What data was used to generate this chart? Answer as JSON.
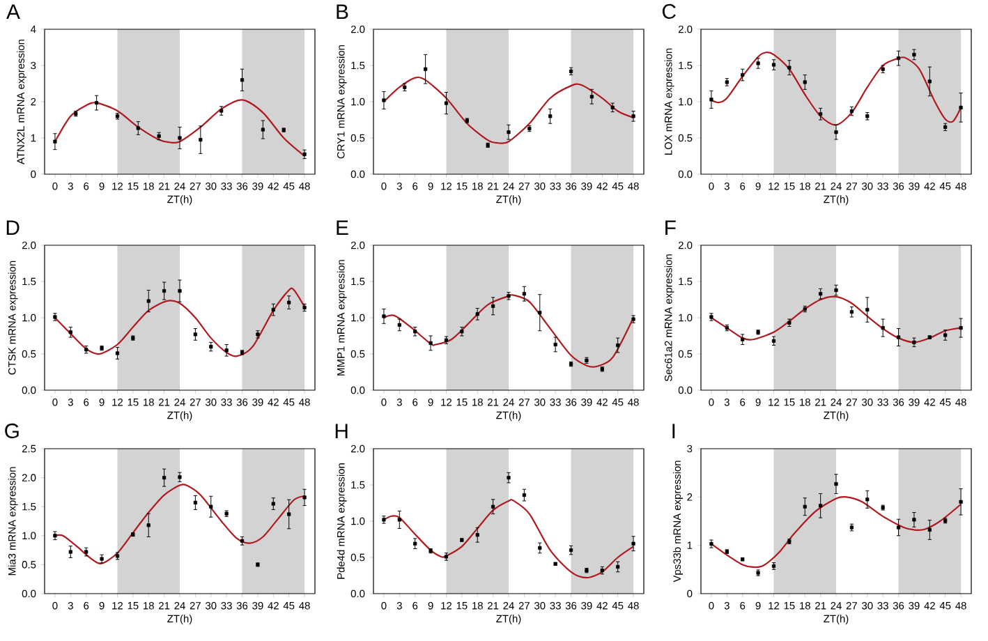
{
  "chart_data": [
    {
      "type": "scatter",
      "title": "A",
      "xlabel": "ZT(h)",
      "ylabel": "ATNX2L mRNA expression",
      "marker": "square",
      "xlim": [
        -2,
        50
      ],
      "ylim": [
        0,
        4
      ],
      "xticks": [
        0,
        3,
        6,
        9,
        12,
        15,
        18,
        21,
        24,
        27,
        30,
        33,
        36,
        39,
        42,
        45,
        48
      ],
      "yticks": [
        0,
        1,
        2,
        3,
        4
      ],
      "bands": [
        {
          "axis": "x",
          "from": 12,
          "to": 24,
          "color": "#d3d3d3"
        },
        {
          "axis": "x",
          "from": 36,
          "to": 48,
          "color": "#d3d3d3"
        }
      ],
      "series": [
        {
          "type": "line",
          "marker": "none",
          "color": "#b0191e",
          "x": [
            0,
            3,
            6,
            8,
            12,
            16,
            20,
            22,
            24,
            28,
            32,
            36,
            40,
            44,
            48
          ],
          "values": [
            0.9,
            1.6,
            1.9,
            1.97,
            1.75,
            1.3,
            0.95,
            0.88,
            0.9,
            1.3,
            1.8,
            2.05,
            1.7,
            1.0,
            0.5
          ]
        },
        {
          "type": "scatter",
          "color": "#000000",
          "x": [
            0,
            4,
            8,
            12,
            16,
            20,
            24,
            28,
            32,
            36,
            40,
            44,
            48
          ],
          "values": [
            0.9,
            1.67,
            1.97,
            1.6,
            1.27,
            1.05,
            1.0,
            0.95,
            1.75,
            2.6,
            1.23,
            1.22,
            0.55
          ],
          "errors": [
            0.22,
            0.07,
            0.2,
            0.08,
            0.18,
            0.1,
            0.3,
            0.38,
            0.12,
            0.3,
            0.25,
            0.05,
            0.12
          ]
        }
      ]
    },
    {
      "type": "scatter",
      "title": "B",
      "xlabel": "ZT(h)",
      "ylabel": "CRY1 mRNA expression",
      "marker": "square",
      "xlim": [
        -2,
        50
      ],
      "ylim": [
        0,
        2
      ],
      "xticks": [
        0,
        3,
        6,
        9,
        12,
        15,
        18,
        21,
        24,
        27,
        30,
        33,
        36,
        39,
        42,
        45,
        48
      ],
      "yticks": [
        {
          "value": 0,
          "label": "0.0"
        },
        {
          "value": 0.5,
          "label": "0.5"
        },
        {
          "value": 1,
          "label": "1.0"
        },
        {
          "value": 1.5,
          "label": "1.5"
        },
        {
          "value": 2,
          "label": "2.0"
        }
      ],
      "bands": [
        {
          "axis": "x",
          "from": 12,
          "to": 24,
          "color": "#d3d3d3"
        },
        {
          "axis": "x",
          "from": 36,
          "to": 48,
          "color": "#d3d3d3"
        }
      ],
      "series": [
        {
          "type": "line",
          "marker": "none",
          "color": "#b0191e",
          "x": [
            0,
            3,
            6,
            8,
            12,
            16,
            20,
            22,
            24,
            28,
            32,
            36,
            38,
            42,
            45,
            48
          ],
          "values": [
            1.0,
            1.2,
            1.33,
            1.3,
            1.05,
            0.7,
            0.47,
            0.43,
            0.45,
            0.7,
            1.05,
            1.22,
            1.23,
            1.05,
            0.87,
            0.78
          ]
        },
        {
          "type": "scatter",
          "color": "#000000",
          "x": [
            0,
            4,
            8,
            12,
            16,
            20,
            24,
            28,
            32,
            36,
            40,
            44,
            48
          ],
          "values": [
            1.02,
            1.2,
            1.45,
            0.98,
            0.74,
            0.4,
            0.58,
            0.63,
            0.8,
            1.42,
            1.07,
            0.92,
            0.8
          ],
          "errors": [
            0.12,
            0.05,
            0.2,
            0.15,
            0.03,
            0.03,
            0.1,
            0.04,
            0.1,
            0.05,
            0.1,
            0.06,
            0.07
          ]
        }
      ]
    },
    {
      "type": "scatter",
      "title": "C",
      "xlabel": "ZT(h)",
      "ylabel": "LOX mRNA expression",
      "marker": "square",
      "xlim": [
        -2,
        50
      ],
      "ylim": [
        0,
        2
      ],
      "xticks": [
        0,
        3,
        6,
        9,
        12,
        15,
        18,
        21,
        24,
        27,
        30,
        33,
        36,
        39,
        42,
        45,
        48
      ],
      "yticks": [
        {
          "value": 0,
          "label": "0.0"
        },
        {
          "value": 0.5,
          "label": "0.5"
        },
        {
          "value": 1,
          "label": "1.0"
        },
        {
          "value": 1.5,
          "label": "1.5"
        },
        {
          "value": 2,
          "label": "2.0"
        }
      ],
      "bands": [
        {
          "axis": "x",
          "from": 12,
          "to": 24,
          "color": "#d3d3d3"
        },
        {
          "axis": "x",
          "from": 36,
          "to": 48,
          "color": "#d3d3d3"
        }
      ],
      "series": [
        {
          "type": "line",
          "marker": "none",
          "color": "#b0191e",
          "x": [
            0,
            1.5,
            3,
            6,
            9,
            10.5,
            12,
            15,
            18,
            21,
            24,
            27,
            30,
            33,
            36,
            37.5,
            40,
            43,
            45,
            46.5,
            48
          ],
          "values": [
            1.02,
            0.99,
            1.05,
            1.35,
            1.62,
            1.68,
            1.65,
            1.45,
            1.1,
            0.8,
            0.68,
            0.85,
            1.2,
            1.5,
            1.6,
            1.6,
            1.45,
            1.0,
            0.76,
            0.73,
            0.92
          ]
        },
        {
          "type": "scatter",
          "color": "#000000",
          "x": [
            0,
            3,
            6,
            9,
            12,
            15,
            18,
            21,
            24,
            27,
            30,
            33,
            36,
            39,
            42,
            45,
            48
          ],
          "values": [
            1.03,
            1.27,
            1.37,
            1.53,
            1.51,
            1.47,
            1.27,
            0.83,
            0.58,
            0.87,
            0.8,
            1.45,
            1.6,
            1.65,
            1.28,
            0.65,
            0.92
          ],
          "errors": [
            0.12,
            0.05,
            0.08,
            0.07,
            0.07,
            0.1,
            0.1,
            0.08,
            0.1,
            0.06,
            0.05,
            0.05,
            0.1,
            0.07,
            0.2,
            0.05,
            0.2
          ]
        }
      ]
    },
    {
      "type": "scatter",
      "title": "D",
      "xlabel": "ZT(h)",
      "ylabel": "CTSK mRNA expression",
      "marker": "square",
      "xlim": [
        -2,
        50
      ],
      "ylim": [
        0,
        2
      ],
      "xticks": [
        0,
        3,
        6,
        9,
        12,
        15,
        18,
        21,
        24,
        27,
        30,
        33,
        36,
        39,
        42,
        45,
        48
      ],
      "yticks": [
        {
          "value": 0,
          "label": "0.0"
        },
        {
          "value": 0.5,
          "label": "0.5"
        },
        {
          "value": 1,
          "label": "1.0"
        },
        {
          "value": 1.5,
          "label": "1.5"
        },
        {
          "value": 2,
          "label": "2.0"
        }
      ],
      "bands": [
        {
          "axis": "x",
          "from": 12,
          "to": 24,
          "color": "#d3d3d3"
        },
        {
          "axis": "x",
          "from": 36,
          "to": 48,
          "color": "#d3d3d3"
        }
      ],
      "series": [
        {
          "type": "line",
          "marker": "none",
          "color": "#b0191e",
          "x": [
            0,
            3,
            6,
            8.5,
            12,
            15,
            18,
            21.5,
            24,
            27,
            30,
            33,
            35,
            38,
            42,
            45,
            46,
            48
          ],
          "values": [
            1.0,
            0.78,
            0.57,
            0.5,
            0.63,
            0.87,
            1.1,
            1.23,
            1.2,
            1.0,
            0.72,
            0.52,
            0.47,
            0.6,
            1.1,
            1.38,
            1.38,
            1.15
          ]
        },
        {
          "type": "scatter",
          "color": "#000000",
          "x": [
            0,
            3,
            6,
            9,
            12,
            15,
            18,
            21,
            24,
            27,
            30,
            33,
            36,
            39,
            42,
            45,
            48
          ],
          "values": [
            1.01,
            0.8,
            0.56,
            0.58,
            0.51,
            0.72,
            1.23,
            1.37,
            1.37,
            0.77,
            0.6,
            0.55,
            0.52,
            0.77,
            1.11,
            1.21,
            1.14
          ],
          "errors": [
            0.05,
            0.07,
            0.05,
            0.03,
            0.08,
            0.03,
            0.15,
            0.12,
            0.15,
            0.08,
            0.06,
            0.08,
            0.03,
            0.05,
            0.08,
            0.09,
            0.05
          ]
        }
      ]
    },
    {
      "type": "scatter",
      "title": "E",
      "xlabel": "ZT(h)",
      "ylabel": "MMP1 mRNA expression",
      "marker": "square",
      "xlim": [
        -2,
        50
      ],
      "ylim": [
        0,
        2
      ],
      "xticks": [
        0,
        3,
        6,
        9,
        12,
        15,
        18,
        21,
        24,
        27,
        30,
        33,
        36,
        39,
        42,
        45,
        48
      ],
      "yticks": [
        {
          "value": 0,
          "label": "0.0"
        },
        {
          "value": 0.5,
          "label": "0.5"
        },
        {
          "value": 1,
          "label": "1.0"
        },
        {
          "value": 1.5,
          "label": "1.5"
        },
        {
          "value": 2,
          "label": "2.0"
        }
      ],
      "bands": [
        {
          "axis": "x",
          "from": 12,
          "to": 24,
          "color": "#d3d3d3"
        },
        {
          "axis": "x",
          "from": 36,
          "to": 48,
          "color": "#d3d3d3"
        }
      ],
      "series": [
        {
          "type": "line",
          "marker": "none",
          "color": "#b0191e",
          "x": [
            0,
            2,
            5,
            9,
            10,
            13,
            16,
            20,
            24,
            25,
            28,
            32,
            36,
            39,
            41,
            44,
            48
          ],
          "values": [
            1.0,
            1.03,
            0.88,
            0.64,
            0.63,
            0.7,
            0.9,
            1.18,
            1.3,
            1.31,
            1.22,
            0.85,
            0.48,
            0.34,
            0.33,
            0.45,
            1.0
          ]
        },
        {
          "type": "scatter",
          "color": "#000000",
          "x": [
            0,
            3,
            6,
            9,
            12,
            15,
            18,
            21,
            24,
            27,
            30,
            33,
            36,
            39,
            42,
            45,
            48
          ],
          "values": [
            1.02,
            0.9,
            0.81,
            0.65,
            0.69,
            0.81,
            1.05,
            1.16,
            1.3,
            1.33,
            1.07,
            0.63,
            0.36,
            0.41,
            0.29,
            0.62,
            0.98
          ],
          "errors": [
            0.1,
            0.08,
            0.06,
            0.1,
            0.05,
            0.06,
            0.08,
            0.12,
            0.05,
            0.1,
            0.25,
            0.1,
            0.03,
            0.04,
            0.03,
            0.1,
            0.05
          ]
        }
      ]
    },
    {
      "type": "scatter",
      "title": "F",
      "xlabel": "ZT(h)",
      "ylabel": "Sec61a2 mRNA expression",
      "marker": "square",
      "xlim": [
        -2,
        50
      ],
      "ylim": [
        0,
        2
      ],
      "xticks": [
        0,
        3,
        6,
        9,
        12,
        15,
        18,
        21,
        24,
        27,
        30,
        33,
        36,
        39,
        42,
        45,
        48
      ],
      "yticks": [
        {
          "value": 0,
          "label": "0.0"
        },
        {
          "value": 0.5,
          "label": "0.5"
        },
        {
          "value": 1,
          "label": "1.0"
        },
        {
          "value": 1.5,
          "label": "1.5"
        },
        {
          "value": 2,
          "label": "2.0"
        }
      ],
      "bands": [
        {
          "axis": "x",
          "from": 12,
          "to": 24,
          "color": "#d3d3d3"
        },
        {
          "axis": "x",
          "from": 36,
          "to": 48,
          "color": "#d3d3d3"
        }
      ],
      "series": [
        {
          "type": "line",
          "marker": "none",
          "color": "#b0191e",
          "x": [
            0,
            3,
            6,
            8,
            12,
            15,
            18,
            21,
            24,
            27,
            30,
            33,
            36,
            39,
            42,
            45,
            48
          ],
          "values": [
            1.0,
            0.86,
            0.72,
            0.7,
            0.8,
            0.95,
            1.12,
            1.25,
            1.29,
            1.2,
            1.02,
            0.85,
            0.72,
            0.66,
            0.72,
            0.82,
            0.86
          ]
        },
        {
          "type": "scatter",
          "color": "#000000",
          "x": [
            0,
            3,
            6,
            9,
            12,
            15,
            18,
            21,
            24,
            27,
            30,
            33,
            36,
            39,
            42,
            45,
            48
          ],
          "values": [
            1.01,
            0.86,
            0.7,
            0.8,
            0.68,
            0.93,
            1.12,
            1.33,
            1.38,
            1.08,
            1.11,
            0.86,
            0.73,
            0.66,
            0.73,
            0.76,
            0.86
          ],
          "errors": [
            0.05,
            0.04,
            0.07,
            0.03,
            0.06,
            0.05,
            0.04,
            0.07,
            0.07,
            0.07,
            0.17,
            0.12,
            0.12,
            0.06,
            0.02,
            0.07,
            0.13
          ]
        }
      ]
    },
    {
      "type": "scatter",
      "title": "G",
      "xlabel": "ZT(h)",
      "ylabel": "Mia3 mRNA expression",
      "marker": "square",
      "xlim": [
        -2,
        50
      ],
      "ylim": [
        0,
        2.5
      ],
      "xticks": [
        0,
        3,
        6,
        9,
        12,
        15,
        18,
        21,
        24,
        27,
        30,
        33,
        36,
        39,
        42,
        45,
        48
      ],
      "yticks": [
        {
          "value": 0,
          "label": "0.0"
        },
        {
          "value": 0.5,
          "label": "0.5"
        },
        {
          "value": 1,
          "label": "1.0"
        },
        {
          "value": 1.5,
          "label": "1.5"
        },
        {
          "value": 2,
          "label": "2.0"
        },
        {
          "value": 2.5,
          "label": "2.5"
        }
      ],
      "bands": [
        {
          "axis": "x",
          "from": 12,
          "to": 24,
          "color": "#d3d3d3"
        },
        {
          "axis": "x",
          "from": 36,
          "to": 48,
          "color": "#d3d3d3"
        }
      ],
      "series": [
        {
          "type": "line",
          "marker": "none",
          "color": "#b0191e",
          "x": [
            0,
            1.5,
            4,
            7,
            9,
            12,
            15,
            18,
            21,
            24,
            25.5,
            28,
            32,
            35,
            37.5,
            40,
            43,
            46,
            48
          ],
          "values": [
            1.0,
            1.0,
            0.83,
            0.6,
            0.52,
            0.7,
            1.05,
            1.4,
            1.7,
            1.87,
            1.86,
            1.7,
            1.25,
            0.95,
            0.87,
            0.98,
            1.3,
            1.62,
            1.68
          ]
        },
        {
          "type": "scatter",
          "color": "#000000",
          "x": [
            0,
            3,
            6,
            9,
            12,
            15,
            18,
            21,
            24,
            27,
            30,
            33,
            36,
            39,
            42,
            45,
            48
          ],
          "values": [
            1.0,
            0.72,
            0.72,
            0.6,
            0.65,
            1.02,
            1.18,
            2.0,
            2.01,
            1.57,
            1.5,
            1.38,
            0.91,
            0.5,
            1.55,
            1.37,
            1.66
          ],
          "errors": [
            0.07,
            0.1,
            0.07,
            0.07,
            0.06,
            0.03,
            0.2,
            0.15,
            0.08,
            0.12,
            0.18,
            0.05,
            0.07,
            0.03,
            0.1,
            0.25,
            0.14
          ]
        }
      ]
    },
    {
      "type": "scatter",
      "title": "H",
      "xlabel": "ZT(h)",
      "ylabel": "Pde4d mRNA expression",
      "marker": "square",
      "xlim": [
        -2,
        50
      ],
      "ylim": [
        0,
        2
      ],
      "xticks": [
        0,
        3,
        6,
        9,
        12,
        15,
        18,
        21,
        24,
        27,
        30,
        33,
        36,
        39,
        42,
        45,
        48
      ],
      "yticks": [
        {
          "value": 0,
          "label": "0.0"
        },
        {
          "value": 0.5,
          "label": "0.5"
        },
        {
          "value": 1,
          "label": "1.0"
        },
        {
          "value": 1.5,
          "label": "1.5"
        },
        {
          "value": 2,
          "label": "2.0"
        }
      ],
      "bands": [
        {
          "axis": "x",
          "from": 12,
          "to": 24,
          "color": "#d3d3d3"
        },
        {
          "axis": "x",
          "from": 36,
          "to": 48,
          "color": "#d3d3d3"
        }
      ],
      "series": [
        {
          "type": "line",
          "marker": "none",
          "color": "#b0191e",
          "x": [
            0,
            1.5,
            3,
            6,
            9,
            11,
            12,
            15,
            18,
            21,
            24,
            25,
            28,
            32,
            36,
            39,
            42,
            45,
            48
          ],
          "values": [
            1.02,
            1.07,
            1.05,
            0.82,
            0.6,
            0.51,
            0.52,
            0.65,
            0.9,
            1.15,
            1.28,
            1.28,
            1.1,
            0.6,
            0.3,
            0.22,
            0.3,
            0.5,
            0.65
          ]
        },
        {
          "type": "scatter",
          "color": "#000000",
          "x": [
            0,
            3,
            6,
            9,
            12,
            15,
            18,
            21,
            24,
            27,
            30,
            33,
            36,
            39,
            42,
            45,
            48
          ],
          "values": [
            1.02,
            1.02,
            0.69,
            0.59,
            0.51,
            0.74,
            0.81,
            1.2,
            1.6,
            1.36,
            0.63,
            0.41,
            0.6,
            0.32,
            0.32,
            0.37,
            0.69
          ],
          "errors": [
            0.05,
            0.12,
            0.07,
            0.03,
            0.05,
            0.02,
            0.1,
            0.1,
            0.07,
            0.08,
            0.07,
            0.02,
            0.06,
            0.03,
            0.05,
            0.07,
            0.1
          ]
        }
      ]
    },
    {
      "type": "scatter",
      "title": "I",
      "xlabel": "ZT(h)",
      "ylabel": "Vps33b mRNA expression",
      "marker": "square",
      "xlim": [
        -2,
        50
      ],
      "ylim": [
        0,
        3
      ],
      "xticks": [
        0,
        3,
        6,
        9,
        12,
        15,
        18,
        21,
        24,
        27,
        30,
        33,
        36,
        39,
        42,
        45,
        48
      ],
      "yticks": [
        0,
        1,
        2,
        3
      ],
      "bands": [
        {
          "axis": "x",
          "from": 12,
          "to": 24,
          "color": "#d3d3d3"
        },
        {
          "axis": "x",
          "from": 36,
          "to": 48,
          "color": "#d3d3d3"
        }
      ],
      "series": [
        {
          "type": "line",
          "marker": "none",
          "color": "#b0191e",
          "x": [
            0,
            3,
            6,
            8,
            10,
            13,
            16,
            20,
            24,
            26,
            29,
            33,
            37,
            39,
            41,
            44,
            48
          ],
          "values": [
            1.03,
            0.8,
            0.6,
            0.55,
            0.58,
            0.85,
            1.25,
            1.7,
            1.97,
            2.0,
            1.9,
            1.6,
            1.37,
            1.32,
            1.33,
            1.5,
            1.85
          ]
        },
        {
          "type": "scatter",
          "color": "#000000",
          "x": [
            0,
            3,
            6,
            9,
            12,
            15,
            18,
            21,
            24,
            27,
            30,
            33,
            36,
            39,
            42,
            45,
            48
          ],
          "values": [
            1.03,
            0.87,
            0.71,
            0.43,
            0.57,
            1.08,
            1.8,
            1.82,
            2.27,
            1.37,
            1.95,
            1.78,
            1.37,
            1.53,
            1.32,
            1.51,
            1.9
          ],
          "errors": [
            0.08,
            0.04,
            0.03,
            0.06,
            0.07,
            0.05,
            0.18,
            0.25,
            0.2,
            0.07,
            0.18,
            0.05,
            0.17,
            0.15,
            0.2,
            0.05,
            0.27
          ]
        }
      ]
    }
  ]
}
